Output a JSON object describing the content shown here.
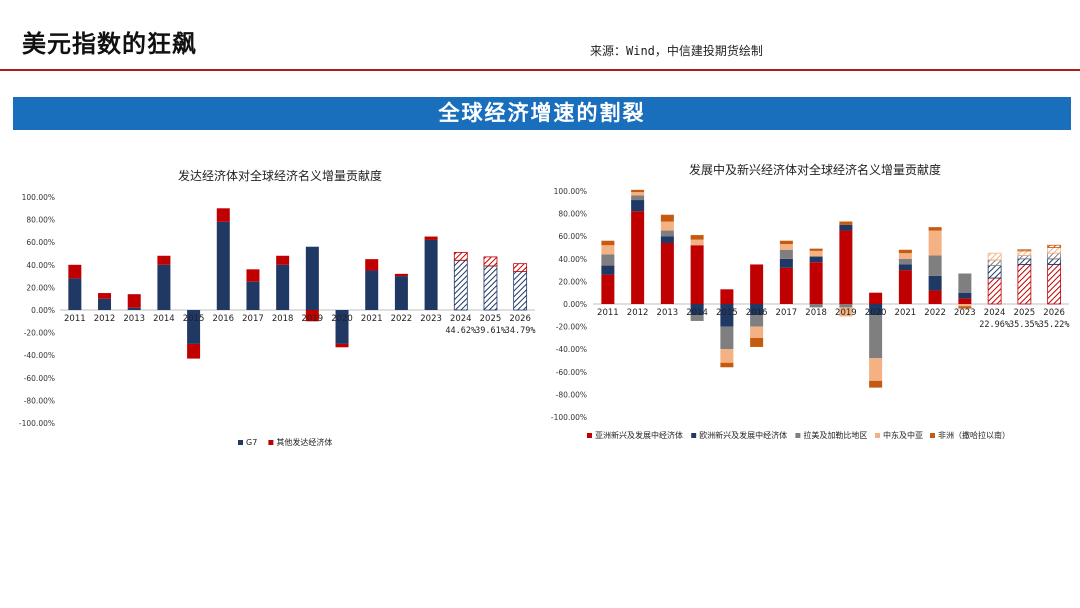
{
  "header": {
    "title": "美元指数的狂飙",
    "source": "来源：Wind，中信建投期货绘制"
  },
  "banner": {
    "text": "全球经济增速的割裂"
  },
  "colors": {
    "navy": "#1f3864",
    "red": "#c00000",
    "gray": "#7f7f7f",
    "peach": "#f4b183",
    "orange": "#c55a11",
    "banner": "#1a6fbd",
    "rule": "#b01c1c"
  },
  "chart_data": [
    {
      "type": "bar",
      "stacked": true,
      "title": "发达经济体对全球经济名义增量贡献度",
      "categories": [
        "2011",
        "2012",
        "2013",
        "2014",
        "2015",
        "2016",
        "2017",
        "2018",
        "2019",
        "2020",
        "2021",
        "2022",
        "2023",
        "2024",
        "2025",
        "2026"
      ],
      "ylim": [
        -100,
        100
      ],
      "yticks": [
        "100.00%",
        "80.00%",
        "60.00%",
        "40.00%",
        "20.00%",
        "0.00%",
        "-20.00%",
        "-40.00%",
        "-60.00%",
        "-80.00%",
        "-100.00%"
      ],
      "forecast_start_index": 13,
      "series": [
        {
          "name": "G7",
          "color": "#1f3864",
          "values": [
            28,
            10,
            2,
            40,
            -30,
            78,
            25,
            40,
            56,
            -30,
            35,
            30,
            62,
            44,
            39,
            34
          ]
        },
        {
          "name": "其他发达经济体",
          "color": "#c00000",
          "values": [
            12,
            5,
            12,
            8,
            -13,
            12,
            11,
            8,
            -10,
            -3,
            10,
            2,
            3,
            7,
            8,
            7
          ]
        }
      ],
      "annotations": [
        {
          "index": 13,
          "text": "44.62%"
        },
        {
          "index": 14,
          "text": "39.61%"
        },
        {
          "index": 15,
          "text": "34.79%"
        }
      ],
      "legend_position": "bottom"
    },
    {
      "type": "bar",
      "stacked": true,
      "title": "发展中及新兴经济体对全球经济名义增量贡献度",
      "categories": [
        "2011",
        "2012",
        "2013",
        "2014",
        "2015",
        "2016",
        "2017",
        "2018",
        "2019",
        "2020",
        "2021",
        "2022",
        "2023",
        "2024",
        "2025",
        "2026"
      ],
      "ylim": [
        -100,
        100
      ],
      "yticks": [
        "100.00%",
        "80.00%",
        "60.00%",
        "40.00%",
        "20.00%",
        "0.00%",
        "-20.00%",
        "-40.00%",
        "-60.00%",
        "-80.00%",
        "-100.00%"
      ],
      "forecast_start_index": 13,
      "series": [
        {
          "name": "亚洲新兴及发展中经济体",
          "color": "#c00000",
          "values": [
            26,
            82,
            54,
            52,
            13,
            35,
            32,
            37,
            65,
            10,
            30,
            12,
            5,
            23,
            35,
            35
          ]
        },
        {
          "name": "欧洲新兴及发展中经济体",
          "color": "#1f3864",
          "values": [
            8,
            10,
            6,
            -10,
            -20,
            -10,
            8,
            5,
            5,
            -10,
            5,
            13,
            5,
            11,
            5,
            5
          ]
        },
        {
          "name": "拉美及加勒比地区",
          "color": "#7f7f7f",
          "values": [
            10,
            4,
            5,
            -5,
            -20,
            -10,
            8,
            -3,
            -3,
            -38,
            5,
            18,
            17,
            5,
            3,
            5
          ]
        },
        {
          "name": "中东及中亚",
          "color": "#f4b183",
          "values": [
            8,
            3,
            8,
            5,
            -12,
            -10,
            5,
            5,
            -8,
            -20,
            5,
            22,
            -2,
            6,
            4,
            5
          ]
        },
        {
          "name": "非洲（撒哈拉以南）",
          "color": "#c55a11",
          "values": [
            4,
            2,
            6,
            4,
            -4,
            -8,
            3,
            2,
            3,
            -6,
            3,
            3,
            -2,
            0,
            1,
            2
          ]
        }
      ],
      "annotations": [
        {
          "index": 13,
          "text": "22.96%"
        },
        {
          "index": 14,
          "text": "35.35%"
        },
        {
          "index": 15,
          "text": "35.22%"
        }
      ],
      "legend_position": "bottom"
    }
  ]
}
